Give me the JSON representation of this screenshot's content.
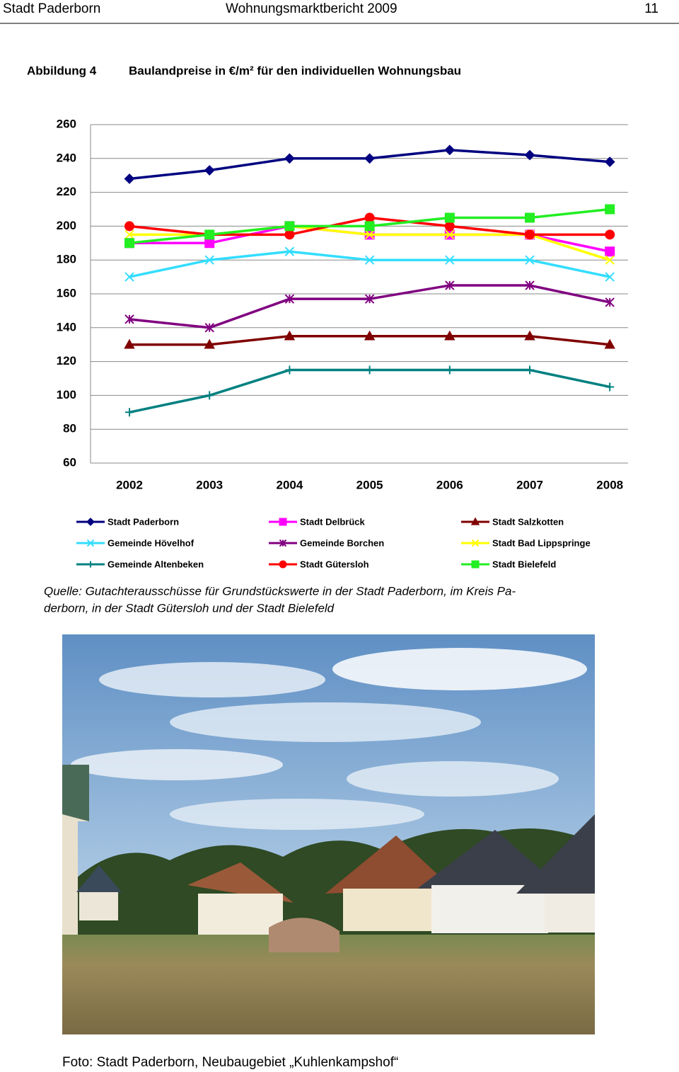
{
  "header": {
    "left": "Stadt Paderborn",
    "center": "Wohnungsmarktbericht 2009",
    "page": "11"
  },
  "figure": {
    "label": "Abbildung 4",
    "title": "Baulandpreise in €/m² für den individuellen Wohnungsbau"
  },
  "chart_data": {
    "type": "line",
    "categories": [
      "2002",
      "2003",
      "2004",
      "2005",
      "2006",
      "2007",
      "2008"
    ],
    "ylim": [
      60,
      260
    ],
    "yticks": [
      60,
      80,
      100,
      120,
      140,
      160,
      180,
      200,
      220,
      240,
      260
    ],
    "grid": true,
    "series": [
      {
        "name": "Stadt Paderborn",
        "color": "#000080",
        "marker": "diamond",
        "values": [
          228,
          233,
          240,
          240,
          245,
          242,
          238
        ]
      },
      {
        "name": "Stadt Delbrück",
        "color": "#ff00ff",
        "marker": "square",
        "values": [
          190,
          190,
          200,
          195,
          195,
          195,
          185
        ]
      },
      {
        "name": "Stadt Salzkotten",
        "color": "#800000",
        "marker": "triangle",
        "values": [
          130,
          130,
          135,
          135,
          135,
          135,
          130
        ]
      },
      {
        "name": "Gemeinde Hövelhof",
        "color": "#33ddff",
        "marker": "x",
        "values": [
          170,
          180,
          185,
          180,
          180,
          180,
          170
        ]
      },
      {
        "name": "Gemeinde Borchen",
        "color": "#800080",
        "marker": "star",
        "values": [
          145,
          140,
          157,
          157,
          165,
          165,
          155
        ]
      },
      {
        "name": "Stadt Bad Lippspringe",
        "color": "#ffff00",
        "marker": "x",
        "values": [
          195,
          195,
          200,
          195,
          195,
          195,
          180
        ]
      },
      {
        "name": "Gemeinde Altenbeken",
        "color": "#008080",
        "marker": "plus",
        "values": [
          90,
          100,
          115,
          115,
          115,
          115,
          105
        ]
      },
      {
        "name": "Stadt Gütersloh",
        "color": "#ff0000",
        "marker": "circle",
        "values": [
          200,
          195,
          195,
          205,
          200,
          195,
          195
        ]
      },
      {
        "name": "Stadt Bielefeld",
        "color": "#22ee22",
        "marker": "square",
        "values": [
          190,
          195,
          200,
          200,
          205,
          205,
          210
        ]
      }
    ]
  },
  "source": {
    "lines": [
      "Quelle: Gutachterausschüsse für Grundstückswerte in der Stadt Paderborn, im Kreis Pa-",
      "derborn, in der Stadt Gütersloh und der Stadt Bielefeld"
    ]
  },
  "photo": {
    "caption": "Foto: Stadt Paderborn, Neubaugebiet „Kuhlenkampshof“"
  }
}
